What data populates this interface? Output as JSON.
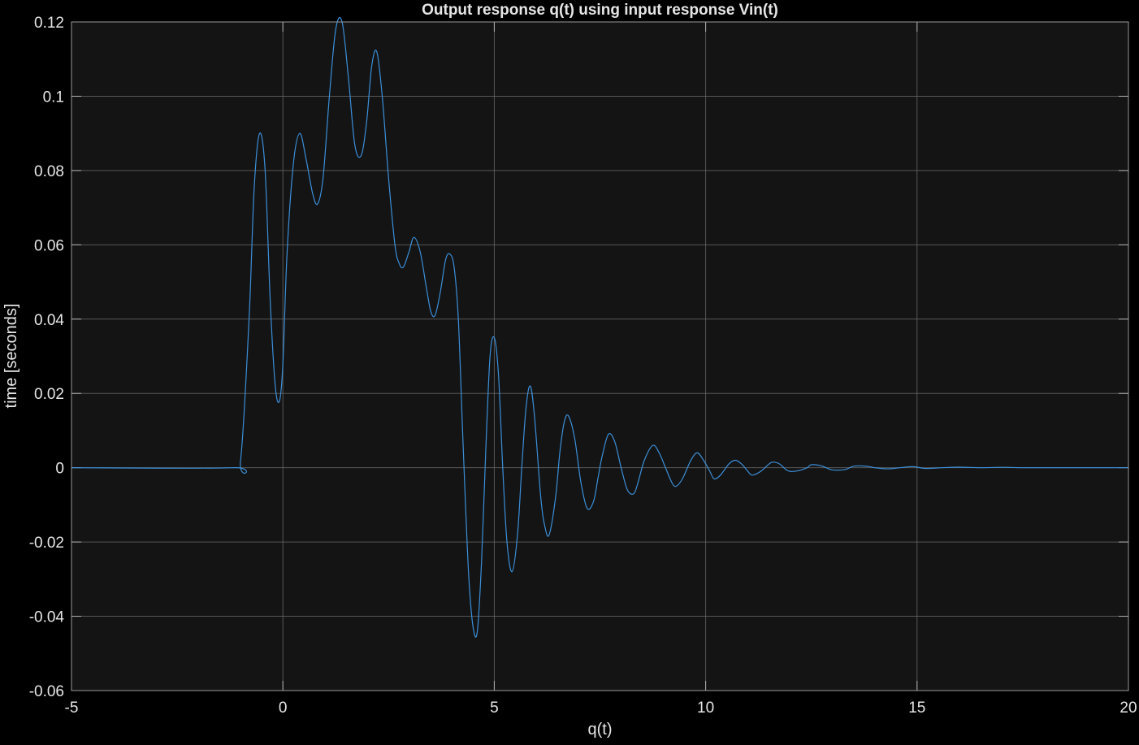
{
  "chart_data": {
    "type": "line",
    "title": "Output response q(t) using input response Vin(t)",
    "xlabel": "q(t)",
    "ylabel": "time [seconds]",
    "xlim": [
      -5,
      20
    ],
    "ylim": [
      -0.06,
      0.12
    ],
    "xticks": [
      -5,
      0,
      5,
      10,
      15,
      20
    ],
    "xtick_labels": [
      "-5",
      "0",
      "5",
      "10",
      "15",
      "20"
    ],
    "yticks": [
      -0.06,
      -0.04,
      -0.02,
      0,
      0.02,
      0.04,
      0.06,
      0.08,
      0.1,
      0.12
    ],
    "ytick_labels": [
      "-0.06",
      "-0.04",
      "-0.02",
      "0",
      "0.02",
      "0.04",
      "0.06",
      "0.08",
      "0.1",
      "0.12"
    ],
    "grid": true,
    "colors": {
      "background": "#000000",
      "axes_background": "#141414",
      "grid": "#6e6e6e",
      "line": "#3b8fd9",
      "text": "#e6e6e6"
    },
    "series": [
      {
        "x": [
          -5,
          -1.2,
          -1.0,
          -0.8,
          -0.68,
          -0.55,
          -0.42,
          -0.3,
          -0.18,
          -0.08,
          0.0,
          0.1,
          0.25,
          0.4,
          0.55,
          0.7,
          0.82,
          0.95,
          1.1,
          1.25,
          1.4,
          1.55,
          1.7,
          1.85,
          1.98,
          2.1,
          2.22,
          2.35,
          2.5,
          2.65,
          2.75,
          2.85,
          2.98,
          3.1,
          3.25,
          3.4,
          3.5,
          3.6,
          3.72,
          3.85,
          3.95,
          4.05,
          4.15,
          4.25,
          4.32,
          4.4,
          4.5,
          4.6,
          4.7,
          4.8,
          4.9,
          5.0,
          5.1,
          5.2,
          5.3,
          5.42,
          5.55,
          5.65,
          5.75,
          5.85,
          5.95,
          6.1,
          6.2,
          6.3,
          6.45,
          6.55,
          6.65,
          6.75,
          6.9,
          7.05,
          7.2,
          7.35,
          7.45,
          7.55,
          7.7,
          7.85,
          8.0,
          8.15,
          8.3,
          8.4,
          8.55,
          8.75,
          8.9,
          9.05,
          9.2,
          9.3,
          9.45,
          9.65,
          9.8,
          9.95,
          10.1,
          10.2,
          10.35,
          10.55,
          10.7,
          10.85,
          11.0,
          11.1,
          11.3,
          11.5,
          11.6,
          11.75,
          11.9,
          12.0,
          12.2,
          12.4,
          12.5,
          12.7,
          12.85,
          13.0,
          13.3,
          13.5,
          13.8,
          14.0,
          14.3,
          14.6,
          14.9,
          15.2,
          15.6,
          16.0,
          16.5,
          17.0,
          17.5,
          18.0,
          19.0,
          20.0
        ],
        "y": [
          0,
          0,
          0.002,
          0.04,
          0.075,
          0.09,
          0.08,
          0.045,
          0.022,
          0.018,
          0.028,
          0.058,
          0.082,
          0.09,
          0.083,
          0.074,
          0.071,
          0.078,
          0.1,
          0.118,
          0.12,
          0.105,
          0.087,
          0.084,
          0.093,
          0.108,
          0.112,
          0.1,
          0.078,
          0.06,
          0.055,
          0.054,
          0.058,
          0.062,
          0.058,
          0.048,
          0.042,
          0.041,
          0.047,
          0.056,
          0.0575,
          0.054,
          0.04,
          0.01,
          -0.01,
          -0.03,
          -0.043,
          -0.044,
          -0.025,
          0.005,
          0.03,
          0.035,
          0.025,
          0.0,
          -0.02,
          -0.028,
          -0.018,
          0.0,
          0.016,
          0.022,
          0.014,
          -0.008,
          -0.016,
          -0.018,
          -0.008,
          0.004,
          0.012,
          0.014,
          0.008,
          -0.004,
          -0.011,
          -0.009,
          -0.003,
          0.003,
          0.009,
          0.007,
          0.0,
          -0.006,
          -0.007,
          -0.004,
          0.002,
          0.006,
          0.004,
          0.0,
          -0.004,
          -0.005,
          -0.003,
          0.002,
          0.004,
          0.002,
          -0.001,
          -0.003,
          -0.002,
          0.001,
          0.002,
          0.001,
          -0.001,
          -0.002,
          -0.001,
          0.001,
          0.0015,
          0.001,
          -0.0005,
          -0.001,
          -0.0008,
          0.0,
          0.0008,
          0.0006,
          0.0,
          -0.0006,
          -0.0005,
          0.0004,
          0.0004,
          0.0,
          -0.0003,
          0.0,
          0.0003,
          -0.0002,
          0.0,
          0.00015,
          0.0,
          0.0001,
          0.0,
          0.0,
          0.0,
          0.0
        ]
      }
    ]
  }
}
